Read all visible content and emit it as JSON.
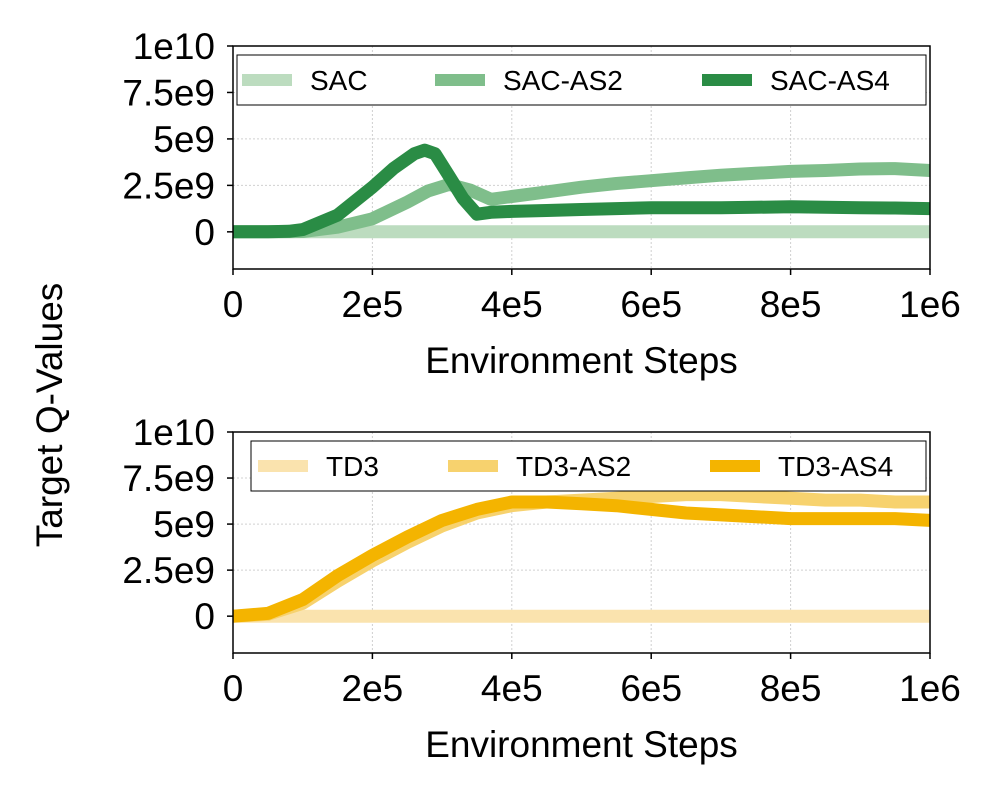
{
  "shared": {
    "ylabel": "Target Q-Values"
  },
  "chart_data": [
    {
      "type": "line",
      "title": "",
      "xlabel": "Environment Steps",
      "ylabel": "Target Q-Values",
      "xlim": [
        0,
        1000000
      ],
      "ylim": [
        -2000000000,
        10000000000
      ],
      "xticks": [
        0,
        200000,
        400000,
        600000,
        800000,
        1000000
      ],
      "xtick_labels": [
        "0",
        "2e5",
        "4e5",
        "6e5",
        "8e5",
        "1e6"
      ],
      "yticks": [
        0,
        2500000000,
        5000000000,
        7500000000,
        10000000000
      ],
      "ytick_labels": [
        "0",
        "2.5e9",
        "5e9",
        "7.5e9",
        "1e10"
      ],
      "grid": true,
      "legend_position": "top",
      "series": [
        {
          "name": "SAC",
          "color": "#bcdcbf",
          "x": [
            0,
            100000,
            200000,
            300000,
            400000,
            500000,
            600000,
            700000,
            800000,
            900000,
            1000000
          ],
          "values": [
            0,
            0,
            0,
            0,
            0,
            0,
            0,
            0,
            0,
            0,
            0
          ]
        },
        {
          "name": "SAC-AS2",
          "color": "#7fbe8b",
          "x": [
            0,
            50000,
            100000,
            150000,
            200000,
            250000,
            280000,
            310000,
            340000,
            370000,
            400000,
            450000,
            500000,
            550000,
            600000,
            650000,
            700000,
            750000,
            800000,
            850000,
            900000,
            950000,
            1000000
          ],
          "values": [
            0,
            0,
            20000000,
            250000000,
            700000000,
            1600000000,
            2200000000,
            2550000000,
            2250000000,
            1750000000,
            1900000000,
            2150000000,
            2400000000,
            2600000000,
            2750000000,
            2900000000,
            3050000000,
            3150000000,
            3250000000,
            3300000000,
            3380000000,
            3400000000,
            3300000000
          ]
        },
        {
          "name": "SAC-AS4",
          "color": "#2a8c45",
          "x": [
            0,
            50000,
            80000,
            100000,
            150000,
            200000,
            230000,
            260000,
            275000,
            290000,
            310000,
            330000,
            350000,
            370000,
            400000,
            450000,
            500000,
            550000,
            600000,
            650000,
            700000,
            750000,
            800000,
            850000,
            900000,
            950000,
            1000000
          ],
          "values": [
            0,
            0,
            30000000,
            120000000,
            900000000,
            2400000000,
            3400000000,
            4200000000,
            4400000000,
            4200000000,
            3000000000,
            1800000000,
            950000000,
            1050000000,
            1100000000,
            1150000000,
            1200000000,
            1250000000,
            1300000000,
            1300000000,
            1300000000,
            1320000000,
            1350000000,
            1320000000,
            1300000000,
            1280000000,
            1250000000
          ]
        }
      ]
    },
    {
      "type": "line",
      "title": "",
      "xlabel": "Environment Steps",
      "ylabel": "Target Q-Values",
      "xlim": [
        0,
        1000000
      ],
      "ylim": [
        -2000000000,
        10000000000
      ],
      "xticks": [
        0,
        200000,
        400000,
        600000,
        800000,
        1000000
      ],
      "xtick_labels": [
        "0",
        "2e5",
        "4e5",
        "6e5",
        "8e5",
        "1e6"
      ],
      "yticks": [
        0,
        2500000000,
        5000000000,
        7500000000,
        10000000000
      ],
      "ytick_labels": [
        "0",
        "2.5e9",
        "5e9",
        "7.5e9",
        "1e10"
      ],
      "grid": true,
      "legend_position": "top",
      "series": [
        {
          "name": "TD3",
          "color": "#fae3ae",
          "x": [
            0,
            100000,
            200000,
            300000,
            400000,
            500000,
            600000,
            700000,
            800000,
            900000,
            1000000
          ],
          "values": [
            0,
            0,
            0,
            0,
            0,
            0,
            0,
            0,
            0,
            0,
            0
          ]
        },
        {
          "name": "TD3-AS2",
          "color": "#f7d26e",
          "x": [
            0,
            50000,
            100000,
            150000,
            200000,
            250000,
            300000,
            350000,
            400000,
            450000,
            500000,
            550000,
            600000,
            650000,
            700000,
            750000,
            800000,
            850000,
            900000,
            950000,
            1000000
          ],
          "values": [
            0,
            100000000,
            700000000,
            1900000000,
            3000000000,
            4000000000,
            4900000000,
            5600000000,
            6000000000,
            6200000000,
            6300000000,
            6400000000,
            6500000000,
            6600000000,
            6600000000,
            6500000000,
            6400000000,
            6300000000,
            6300000000,
            6200000000,
            6200000000
          ]
        },
        {
          "name": "TD3-AS4",
          "color": "#f4b400",
          "x": [
            0,
            50000,
            100000,
            150000,
            200000,
            250000,
            300000,
            350000,
            400000,
            450000,
            500000,
            550000,
            600000,
            650000,
            700000,
            750000,
            800000,
            850000,
            900000,
            950000,
            1000000
          ],
          "values": [
            0,
            150000000,
            900000000,
            2200000000,
            3300000000,
            4300000000,
            5200000000,
            5800000000,
            6200000000,
            6200000000,
            6100000000,
            6000000000,
            5800000000,
            5600000000,
            5500000000,
            5400000000,
            5300000000,
            5300000000,
            5300000000,
            5300000000,
            5200000000
          ]
        }
      ]
    }
  ]
}
